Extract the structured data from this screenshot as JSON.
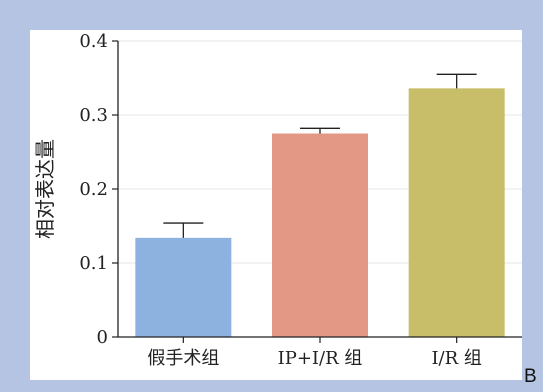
{
  "panel_label": "B",
  "chart_data": {
    "type": "bar",
    "categories": [
      "假手术组",
      "IP+I/R 组",
      "I/R 组"
    ],
    "values": [
      0.134,
      0.275,
      0.336
    ],
    "errors": [
      0.02,
      0.007,
      0.019
    ],
    "ylabel": "相对表达量",
    "xlabel": "",
    "ylim": [
      0,
      0.4
    ],
    "yticks": [
      "0",
      "0.1",
      "0.2",
      "0.3",
      "0.4"
    ],
    "grid": true,
    "legend": "none",
    "colors": [
      "#8db2df",
      "#e29885",
      "#c8bd68"
    ],
    "background": "#ffffff",
    "frame_color": "#b4c4e2"
  }
}
